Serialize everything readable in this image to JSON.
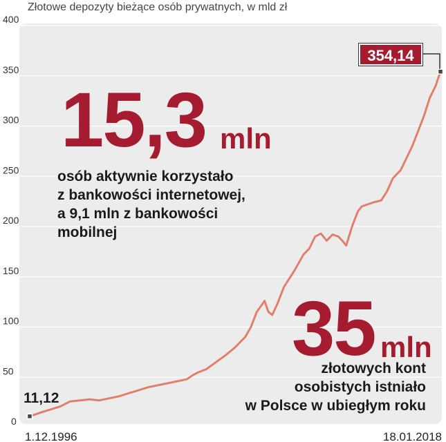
{
  "subtitle": "Złotowe depozyty bieżące osób prywatnych, w mld zł",
  "colors": {
    "line": "#e0806a",
    "accent": "#a51c30",
    "panel": "#ececec"
  },
  "callout_1": {
    "number": "15,3",
    "unit": "mln",
    "lines": [
      "osób aktywnie korzystało",
      "z bankowości internetowej,",
      "a 9,1 mln z bankowości",
      "mobilnej"
    ]
  },
  "callout_2": {
    "number": "35",
    "unit": "mln",
    "lines": [
      "złotowych kont",
      "osobistych istniało",
      "w Polsce w ubiegłym roku"
    ]
  },
  "chart_data": {
    "type": "line",
    "x_start_label": "1.12.1996",
    "x_end_label": "18.01.2018",
    "yticks": [
      0,
      50,
      100,
      150,
      200,
      250,
      300,
      350,
      400
    ],
    "ylim": [
      0,
      400
    ],
    "grid": true,
    "start_value_label": "11,12",
    "end_value_label": "354,14",
    "series": [
      {
        "points": [
          [
            1996.92,
            11.12
          ],
          [
            1997.5,
            15
          ],
          [
            1998.0,
            18
          ],
          [
            1998.5,
            21
          ],
          [
            1999.0,
            26
          ],
          [
            1999.5,
            27
          ],
          [
            2000.0,
            28
          ],
          [
            2000.5,
            27
          ],
          [
            2001.0,
            29
          ],
          [
            2001.5,
            31
          ],
          [
            2002.0,
            34
          ],
          [
            2002.5,
            37
          ],
          [
            2003.0,
            40
          ],
          [
            2003.5,
            42
          ],
          [
            2004.0,
            44
          ],
          [
            2004.5,
            46
          ],
          [
            2005.0,
            48
          ],
          [
            2005.3,
            52
          ],
          [
            2005.6,
            55
          ],
          [
            2006.0,
            58
          ],
          [
            2006.5,
            65
          ],
          [
            2007.0,
            72
          ],
          [
            2007.5,
            80
          ],
          [
            2008.0,
            90
          ],
          [
            2008.3,
            100
          ],
          [
            2008.6,
            115
          ],
          [
            2009.0,
            126
          ],
          [
            2009.2,
            115
          ],
          [
            2009.4,
            112
          ],
          [
            2009.7,
            125
          ],
          [
            2010.0,
            140
          ],
          [
            2010.5,
            155
          ],
          [
            2011.0,
            172
          ],
          [
            2011.3,
            178
          ],
          [
            2011.6,
            190
          ],
          [
            2011.9,
            193
          ],
          [
            2012.2,
            186
          ],
          [
            2012.5,
            192
          ],
          [
            2012.8,
            190
          ],
          [
            2013.0,
            186
          ],
          [
            2013.2,
            181
          ],
          [
            2013.5,
            200
          ],
          [
            2013.8,
            215
          ],
          [
            2014.0,
            220
          ],
          [
            2014.3,
            222
          ],
          [
            2014.6,
            224
          ],
          [
            2015.0,
            226
          ],
          [
            2015.3,
            235
          ],
          [
            2015.6,
            248
          ],
          [
            2016.0,
            256
          ],
          [
            2016.3,
            268
          ],
          [
            2016.6,
            280
          ],
          [
            2016.9,
            295
          ],
          [
            2017.2,
            310
          ],
          [
            2017.5,
            328
          ],
          [
            2017.8,
            340
          ],
          [
            2018.05,
            354.14
          ]
        ]
      }
    ]
  }
}
